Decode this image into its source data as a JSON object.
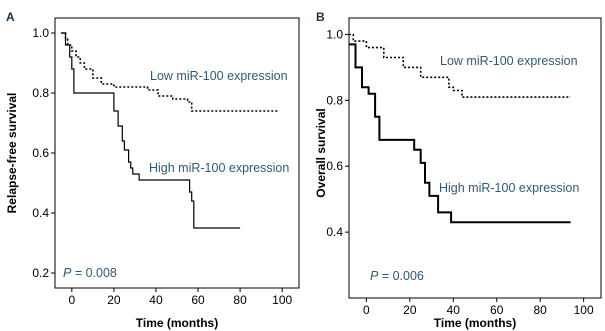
{
  "chart_data": [
    {
      "type": "line",
      "subtype": "kaplan-meier",
      "panel_label": "A",
      "xlabel": "Time (months)",
      "ylabel": "Relapse-free survival",
      "xlim": [
        -8,
        108
      ],
      "ylim": [
        0.15,
        1.05
      ],
      "xticks": [
        0,
        20,
        40,
        60,
        80,
        100
      ],
      "yticks": [
        0.2,
        0.4,
        0.6,
        0.8,
        1.0
      ],
      "xtick_labels": [
        "0",
        "20",
        "40",
        "60",
        "80",
        "100"
      ],
      "ytick_labels": [
        "0.2",
        "0.4",
        "0.6",
        "0.8",
        "1.0"
      ],
      "annotation": {
        "italic": "P",
        "text": " = 0.008"
      },
      "series": [
        {
          "name": "Low miR-100 expression",
          "line_style": "dotted",
          "x": [
            -5,
            -3,
            -2,
            0,
            2,
            4,
            6,
            10,
            14,
            20,
            27,
            36,
            41,
            48,
            55,
            57,
            98
          ],
          "y": [
            1.0,
            0.98,
            0.96,
            0.94,
            0.92,
            0.9,
            0.88,
            0.85,
            0.83,
            0.82,
            0.82,
            0.81,
            0.79,
            0.78,
            0.77,
            0.74,
            0.74
          ]
        },
        {
          "name": "High miR-100 expression",
          "line_style": "solid",
          "x": [
            -5,
            -3,
            -1,
            0,
            1,
            20,
            22,
            24,
            25,
            27,
            28,
            29,
            32,
            55,
            56,
            57,
            58,
            80
          ],
          "y": [
            1.0,
            0.96,
            0.92,
            0.88,
            0.8,
            0.74,
            0.69,
            0.64,
            0.61,
            0.57,
            0.55,
            0.53,
            0.51,
            0.51,
            0.47,
            0.44,
            0.35,
            0.35
          ]
        }
      ]
    },
    {
      "type": "line",
      "subtype": "kaplan-meier",
      "panel_label": "B",
      "xlabel": "Time (months)",
      "ylabel": "Overall survival",
      "xlim": [
        -8,
        108
      ],
      "ylim": [
        0.2,
        1.05
      ],
      "xticks": [
        0,
        20,
        40,
        60,
        80,
        100
      ],
      "yticks": [
        0.4,
        0.6,
        0.8,
        1.0
      ],
      "xtick_labels": [
        "0",
        "20",
        "40",
        "60",
        "80",
        "100"
      ],
      "ytick_labels": [
        "0.4",
        "0.6",
        "0.8",
        "1.0"
      ],
      "annotation": {
        "italic": "P",
        "text": " = 0.006"
      },
      "series": [
        {
          "name": "Low miR-100 expression",
          "line_style": "dotted",
          "x": [
            -8,
            -6,
            0,
            8,
            12,
            17,
            20,
            25,
            33,
            38,
            40,
            44,
            94
          ],
          "y": [
            1.0,
            0.98,
            0.96,
            0.93,
            0.93,
            0.9,
            0.9,
            0.87,
            0.87,
            0.84,
            0.83,
            0.81,
            0.81
          ]
        },
        {
          "name": "High miR-100 expression",
          "line_style": "solid",
          "x": [
            -8,
            -5,
            -2,
            1,
            4,
            6,
            10,
            22,
            25,
            27,
            29,
            33,
            39,
            94
          ],
          "y": [
            0.97,
            0.9,
            0.84,
            0.82,
            0.75,
            0.68,
            0.68,
            0.65,
            0.61,
            0.55,
            0.51,
            0.46,
            0.43,
            0.43
          ]
        }
      ]
    }
  ]
}
